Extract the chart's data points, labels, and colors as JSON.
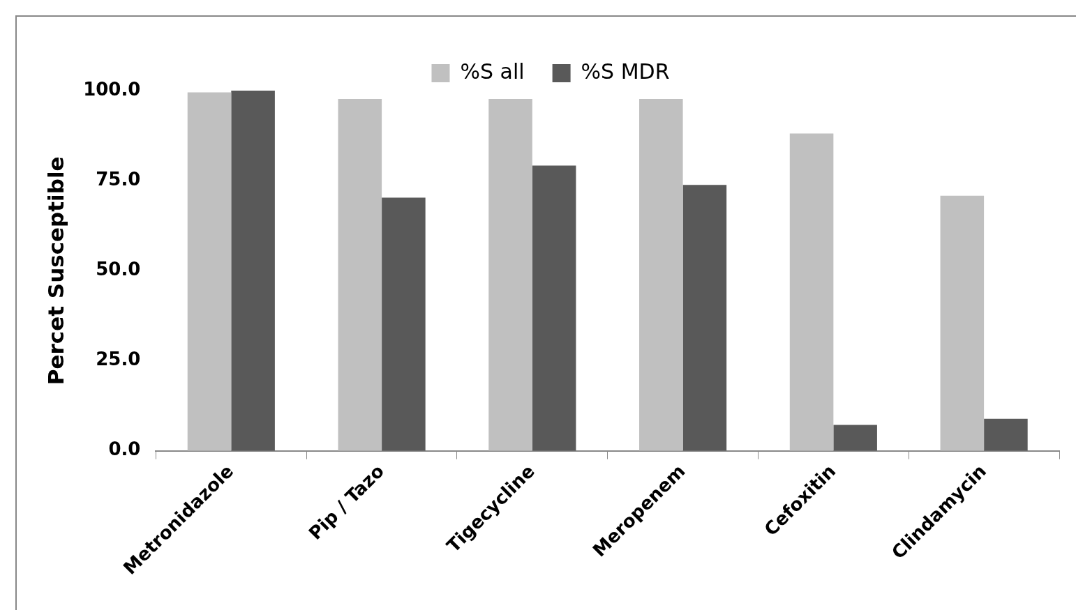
{
  "chart_data": {
    "type": "bar",
    "ylabel": "Percet Susceptible",
    "categories": [
      "Metronidazole",
      "Pip / Tazo",
      "Tigecycline",
      "Meropenem",
      "Cefoxitin",
      "Clindamycin"
    ],
    "series": [
      {
        "name": "%S all",
        "color": "#c0c0c0",
        "values": [
          99.5,
          97.7,
          97.7,
          97.7,
          88.1,
          70.8
        ]
      },
      {
        "name": "%S MDR",
        "color": "#595959",
        "values": [
          100,
          70.3,
          79.2,
          73.8,
          7.2,
          8.9
        ]
      }
    ],
    "ylim": [
      0,
      100
    ],
    "yticks": [
      {
        "value": 0,
        "label": "0.0"
      },
      {
        "value": 25,
        "label": "25.0"
      },
      {
        "value": 50,
        "label": "50.0"
      },
      {
        "value": 75,
        "label": "75.0"
      },
      {
        "value": 100,
        "label": "100.0"
      }
    ],
    "legend": "top"
  }
}
